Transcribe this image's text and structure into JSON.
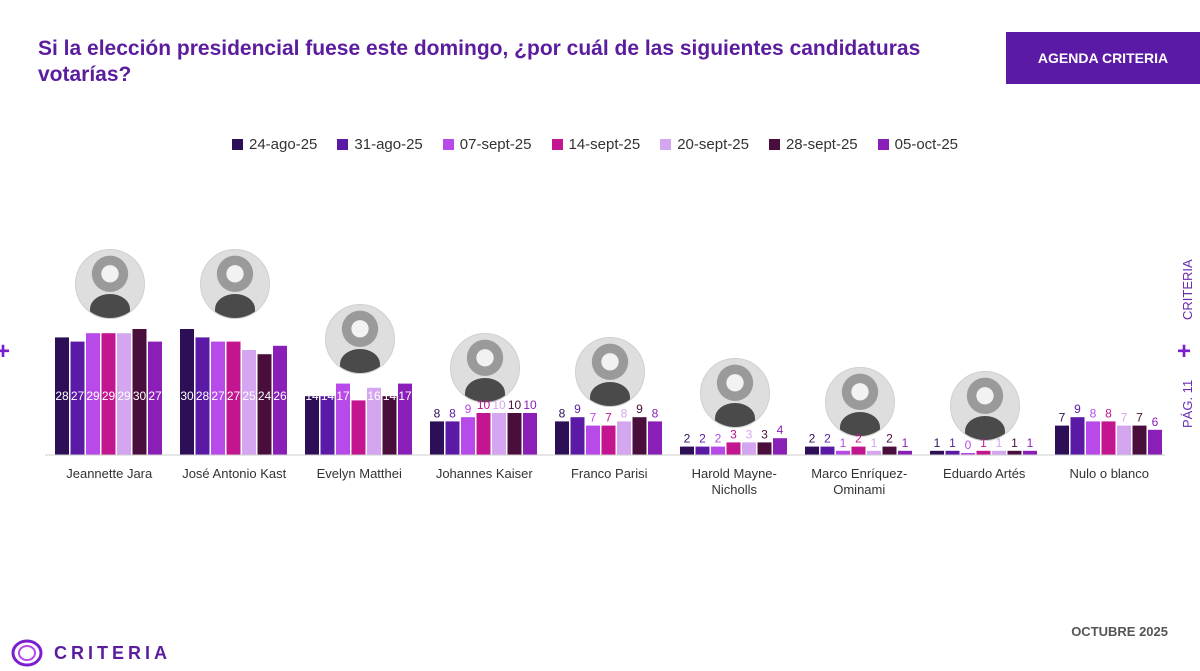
{
  "header": {
    "title": "Si la elección presidencial fuese este domingo, ¿por cuál de las siguientes candidaturas votarías?",
    "brand_badge": "AGENDA CRITERIA"
  },
  "side": {
    "brand": "CRITERIA",
    "page": "PÁG. 11"
  },
  "footer": {
    "brand": "CRITERIA",
    "date": "OCTUBRE 2025"
  },
  "colors": [
    "#2d0f57",
    "#5a1aa6",
    "#b74ae8",
    "#c2158f",
    "#d5a6f0",
    "#4a0e3c",
    "#8a1fb8"
  ],
  "avatars": [
    "person-photo",
    "person-photo",
    "person-photo",
    "person-photo",
    "person-photo",
    "person-photo",
    "person-photo",
    "person-photo"
  ],
  "chart_data": {
    "type": "bar",
    "title": "Si la elección presidencial fuese este domingo, ¿por cuál de las siguientes candidaturas votarías?",
    "categories": [
      "Jeannette Jara",
      "José Antonio Kast",
      "Evelyn Matthei",
      "Johannes Kaiser",
      "Franco Parisi",
      "Harold Mayne-Nicholls",
      "Marco Enríquez-Ominami",
      "Eduardo Artés",
      "Nulo o blanco"
    ],
    "series": [
      {
        "name": "24-ago-25",
        "values": [
          28,
          30,
          14,
          8,
          8,
          2,
          2,
          1,
          7
        ]
      },
      {
        "name": "31-ago-25",
        "values": [
          27,
          28,
          14,
          8,
          9,
          2,
          2,
          1,
          9
        ]
      },
      {
        "name": "07-sept-25",
        "values": [
          29,
          27,
          17,
          9,
          7,
          2,
          1,
          0,
          8
        ]
      },
      {
        "name": "14-sept-25",
        "values": [
          29,
          27,
          13,
          10,
          7,
          3,
          2,
          1,
          8
        ]
      },
      {
        "name": "20-sept-25",
        "values": [
          29,
          25,
          16,
          10,
          8,
          3,
          1,
          1,
          7
        ]
      },
      {
        "name": "28-sept-25",
        "values": [
          30,
          24,
          14,
          10,
          9,
          3,
          2,
          1,
          7
        ]
      },
      {
        "name": "05-oct-25",
        "values": [
          27,
          26,
          17,
          10,
          8,
          4,
          1,
          1,
          6
        ]
      }
    ],
    "legend_position": "top",
    "grid": false,
    "ylim": [
      0,
      30
    ]
  }
}
